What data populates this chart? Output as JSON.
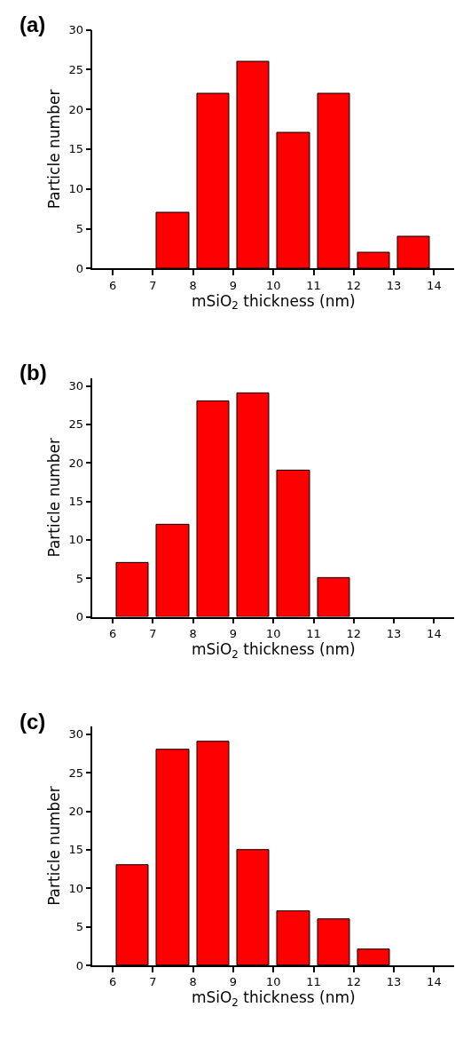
{
  "chart_data": [
    {
      "type": "histogram",
      "title": "(a)",
      "xlabel": "mSiO$_{2}$ thickness (nm)",
      "ylabel": "Particle number",
      "bins": [
        6,
        7,
        8,
        9,
        10,
        11,
        12,
        13,
        14
      ],
      "values": [
        0,
        7,
        22,
        26,
        17,
        22,
        2,
        4
      ],
      "color": "#ff0000",
      "xlim": [
        5.5,
        14.5
      ],
      "xticks": [
        6,
        7,
        8,
        9,
        10,
        11,
        12,
        13,
        14
      ],
      "ylim": [
        0,
        30
      ],
      "yticks": [
        0,
        5,
        10,
        15,
        20,
        25,
        30
      ],
      "legend": false
    },
    {
      "type": "histogram",
      "title": "(b)",
      "xlabel": "mSiO$_{2}$ thickness (nm)",
      "ylabel": "Particle number",
      "bins": [
        6,
        7,
        8,
        9,
        10,
        11,
        12,
        13,
        14
      ],
      "values": [
        7,
        12,
        28,
        29,
        19,
        5,
        0,
        0
      ],
      "color": "#ff0000",
      "xlim": [
        5.5,
        14.5
      ],
      "xticks": [
        6,
        7,
        8,
        9,
        10,
        11,
        12,
        13,
        14
      ],
      "ylim": [
        0,
        31
      ],
      "yticks": [
        0,
        5,
        10,
        15,
        20,
        25,
        30
      ],
      "legend": false
    },
    {
      "type": "histogram",
      "title": "(c)",
      "xlabel": "mSiO$_{2}$ thickness (nm)",
      "ylabel": "Particle number",
      "bins": [
        6,
        7,
        8,
        9,
        10,
        11,
        12,
        13,
        14
      ],
      "values": [
        13,
        28,
        29,
        15,
        7,
        6,
        2,
        0
      ],
      "color": "#ff0000",
      "xlim": [
        5.5,
        14.5
      ],
      "xticks": [
        6,
        7,
        8,
        9,
        10,
        11,
        12,
        13,
        14
      ],
      "ylim": [
        0,
        31
      ],
      "yticks": [
        0,
        5,
        10,
        15,
        20,
        25,
        30
      ],
      "legend": false
    }
  ]
}
